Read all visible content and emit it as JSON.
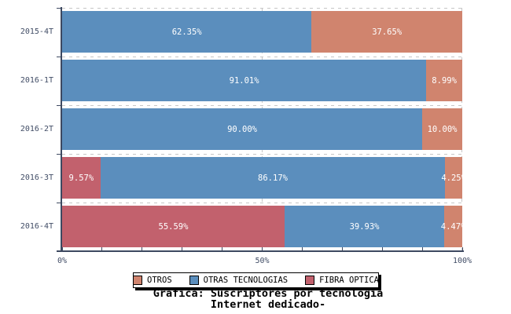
{
  "chart_data": {
    "type": "bar",
    "orientation": "horizontal",
    "stacked": true,
    "title": "Gráfica: Suscriptores por tecnología",
    "subtitle": "Internet dedicado-",
    "categories": [
      "2015-4T",
      "2016-1T",
      "2016-2T",
      "2016-3T",
      "2016-4T"
    ],
    "series": [
      {
        "name": "FIBRA OPTICA",
        "color": "#c2616d",
        "values": [
          0,
          0,
          0,
          9.57,
          55.59
        ]
      },
      {
        "name": "OTRAS TECNOLOGIAS",
        "color": "#5b8ebd",
        "values": [
          62.35,
          91.01,
          90.0,
          86.17,
          39.93
        ]
      },
      {
        "name": "OTROS",
        "color": "#d0846e",
        "values": [
          37.65,
          8.99,
          10.0,
          4.25,
          4.47
        ]
      }
    ],
    "value_labels": [
      [
        "62.35%",
        "37.65%"
      ],
      [
        "91.01%",
        "8.99%"
      ],
      [
        "90.00%",
        "10.00%"
      ],
      [
        "9.57%",
        "86.17%",
        "4.25%"
      ],
      [
        "55.59%",
        "39.93%",
        "4.47%"
      ]
    ],
    "xlim": [
      0,
      100
    ],
    "x_tick_step_pct": 10,
    "x_tick_labels": [
      {
        "text": "0%",
        "pct": 0
      },
      {
        "text": "50%",
        "pct": 50
      },
      {
        "text": "100%",
        "pct": 100
      }
    ],
    "grid": {
      "style": "dashed",
      "color": "#c6c6c6",
      "vlines_pct": [
        50,
        100
      ]
    },
    "legend": {
      "position": "bottom-center",
      "entries": [
        {
          "label": "OTROS",
          "color": "#d0846e"
        },
        {
          "label": "OTRAS TECNOLOGIAS",
          "color": "#5b8ebd"
        },
        {
          "label": "FIBRA OPTICA",
          "color": "#c2616d"
        }
      ]
    }
  },
  "colors": {
    "axis": "#3d4961",
    "tick_label": "#414d66",
    "bar_value_label": "#ffffff",
    "background": "#ffffff"
  }
}
